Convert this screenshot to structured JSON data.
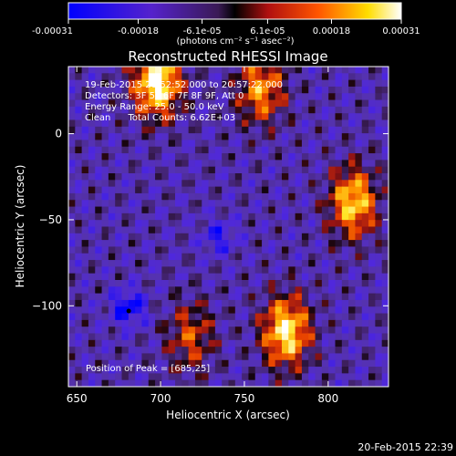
{
  "chart_data": {
    "type": "heatmap",
    "title": "Reconstructed RHESSI Image",
    "xlabel": "Heliocentric X (arcsec)",
    "ylabel": "Heliocentric Y (arcsec)",
    "xlim": [
      645,
      836
    ],
    "ylim": [
      -147,
      39
    ],
    "xticks": [
      650,
      700,
      750,
      800
    ],
    "xtick_labels": [
      "650",
      "700",
      "750",
      "800"
    ],
    "yticks": [
      0,
      -50,
      -100
    ],
    "ytick_labels": [
      "0",
      "−50",
      "−100"
    ],
    "colorbar": {
      "range": [
        -0.00031,
        0.00031
      ],
      "tick_values": [
        -0.00031,
        -0.00018,
        -6.1e-05,
        6.1e-05,
        0.00018,
        0.00031
      ],
      "tick_labels": [
        "-0.00031",
        "-0.00018",
        "-6.1e-05",
        "6.1e-05",
        "0.00018",
        "0.00031"
      ],
      "unit_label": "(photons cm⁻² s⁻¹ asec⁻²)"
    },
    "annotations": [
      "19-Feb-2015 20:52:52.000 to 20:57:22.000",
      "Detectors: 3F 5F 6F 7F 8F 9F, Att 0",
      "Energy Range: 25.0 - 50.0 keV",
      "Clean      Total Counts: 6.62E+03"
    ],
    "peak_label": "Position of Peak = [685,25]",
    "peak_position": [
      685,
      25
    ],
    "hot_regions": [
      {
        "x": 698,
        "y": 30,
        "peak": 0.00031
      },
      {
        "x": 760,
        "y": 26,
        "peak": 0.0002
      },
      {
        "x": 815,
        "y": -40,
        "peak": 0.00025
      },
      {
        "x": 775,
        "y": -115,
        "peak": 0.00028
      },
      {
        "x": 718,
        "y": -118,
        "peak": 0.00014
      }
    ],
    "cold_regions": [
      {
        "x": 681,
        "y": -101,
        "peak": -0.00031
      },
      {
        "x": 735,
        "y": -60,
        "peak": -0.0002
      }
    ],
    "marker": {
      "x": 681,
      "y": -103
    }
  },
  "footer": {
    "timestamp": "20-Feb-2015 22:39"
  }
}
